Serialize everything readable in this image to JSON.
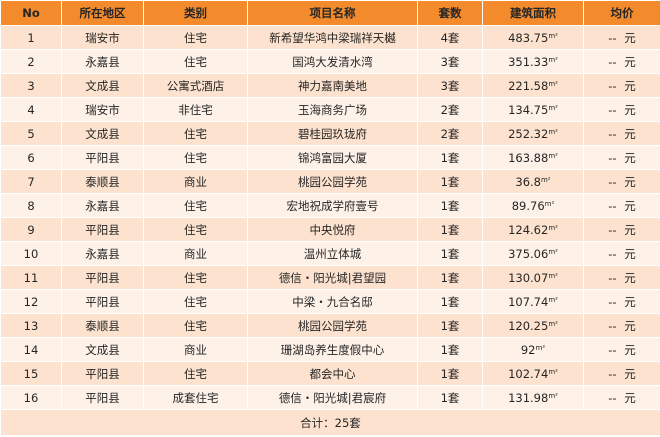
{
  "table": {
    "columns": [
      "No",
      "所在地区",
      "类别",
      "项目名称",
      "套数",
      "建筑面积",
      "均价"
    ],
    "area_unit": "m²",
    "rows": [
      {
        "no": "1",
        "region": "瑞安市",
        "category": "住宅",
        "project": "新希望华鸿中梁瑞祥天樾",
        "units": "4套",
        "area": "483.75",
        "price": "-- 元"
      },
      {
        "no": "2",
        "region": "永嘉县",
        "category": "住宅",
        "project": "国鸿大发清水湾",
        "units": "3套",
        "area": "351.33",
        "price": "-- 元"
      },
      {
        "no": "3",
        "region": "文成县",
        "category": "公寓式酒店",
        "project": "神力嘉南美地",
        "units": "3套",
        "area": "221.58",
        "price": "-- 元"
      },
      {
        "no": "4",
        "region": "瑞安市",
        "category": "非住宅",
        "project": "玉海商务广场",
        "units": "2套",
        "area": "134.75",
        "price": "-- 元"
      },
      {
        "no": "5",
        "region": "文成县",
        "category": "住宅",
        "project": "碧桂园玖珑府",
        "units": "2套",
        "area": "252.32",
        "price": "-- 元"
      },
      {
        "no": "6",
        "region": "平阳县",
        "category": "住宅",
        "project": "锦鸿富园大厦",
        "units": "1套",
        "area": "163.88",
        "price": "-- 元"
      },
      {
        "no": "7",
        "region": "泰顺县",
        "category": "商业",
        "project": "桃园公园学苑",
        "units": "1套",
        "area": "36.8",
        "price": "-- 元"
      },
      {
        "no": "8",
        "region": "永嘉县",
        "category": "住宅",
        "project": "宏地祝成学府壹号",
        "units": "1套",
        "area": "89.76",
        "price": "-- 元"
      },
      {
        "no": "9",
        "region": "平阳县",
        "category": "住宅",
        "project": "中央悦府",
        "units": "1套",
        "area": "124.62",
        "price": "-- 元"
      },
      {
        "no": "10",
        "region": "永嘉县",
        "category": "商业",
        "project": "温州立体城",
        "units": "1套",
        "area": "375.06",
        "price": "-- 元"
      },
      {
        "no": "11",
        "region": "平阳县",
        "category": "住宅",
        "project": "德信・阳光城|君望园",
        "units": "1套",
        "area": "130.07",
        "price": "-- 元"
      },
      {
        "no": "12",
        "region": "平阳县",
        "category": "住宅",
        "project": "中梁・九合名邸",
        "units": "1套",
        "area": "107.74",
        "price": "-- 元"
      },
      {
        "no": "13",
        "region": "泰顺县",
        "category": "住宅",
        "project": "桃园公园学苑",
        "units": "1套",
        "area": "120.25",
        "price": "-- 元"
      },
      {
        "no": "14",
        "region": "文成县",
        "category": "商业",
        "project": "珊湖岛养生度假中心",
        "units": "1套",
        "area": "92",
        "price": "-- 元"
      },
      {
        "no": "15",
        "region": "平阳县",
        "category": "住宅",
        "project": "都会中心",
        "units": "1套",
        "area": "102.74",
        "price": "-- 元"
      },
      {
        "no": "16",
        "region": "平阳县",
        "category": "成套住宅",
        "project": "德信・阳光城|君宸府",
        "units": "1套",
        "area": "131.98",
        "price": "-- 元"
      }
    ],
    "total": "合计：25套"
  },
  "colors": {
    "header_bg": "#f38b2c",
    "row_odd_bg": "#fde3cf",
    "row_even_bg": "#fef1e8"
  }
}
